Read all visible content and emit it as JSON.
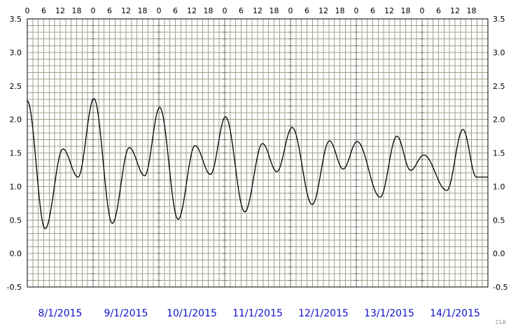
{
  "chart_data": {
    "type": "line",
    "title": "",
    "xlabel": "",
    "ylabel": "",
    "ylim": [
      -0.5,
      3.5
    ],
    "y_ticks": [
      "3.5",
      "3.0",
      "2.5",
      "2.0",
      "1.5",
      "1.0",
      "0.5",
      "0.0",
      "-0.5"
    ],
    "hour_ticks": [
      "0",
      "6",
      "12",
      "18"
    ],
    "days": [
      "8/1/2015",
      "9/1/2015",
      "10/1/2015",
      "11/1/2015",
      "12/1/2015",
      "13/1/2015",
      "14/1/2015"
    ],
    "grid": true,
    "x_unit": "hours from 8/1/2015 00:00",
    "series": [
      {
        "values_x": [
          0,
          6.5,
          13,
          18.5,
          24.3,
          31,
          37.2,
          42.8,
          48.3,
          55,
          61.2,
          66.8,
          72.3,
          79.3,
          85.8,
          91,
          96.6,
          103.9,
          110.2,
          115.2,
          120.3,
          128.7,
          134.8,
          139.8,
          144.6,
          153,
          158.9,
          163.8,
          168
        ],
        "values_y": [
          2.28,
          0.37,
          1.56,
          1.14,
          2.31,
          0.45,
          1.58,
          1.16,
          2.18,
          0.51,
          1.61,
          1.18,
          2.04,
          0.62,
          1.64,
          1.22,
          1.88,
          0.73,
          1.68,
          1.26,
          1.67,
          0.84,
          1.75,
          1.24,
          1.47,
          0.94,
          1.85,
          1.14,
          1.14
        ]
      }
    ]
  },
  "credit": "CLK",
  "colors": {
    "grid": "#a0a08c",
    "line": "#000000",
    "date_labels": "#1010c8",
    "frame": "#000000"
  }
}
